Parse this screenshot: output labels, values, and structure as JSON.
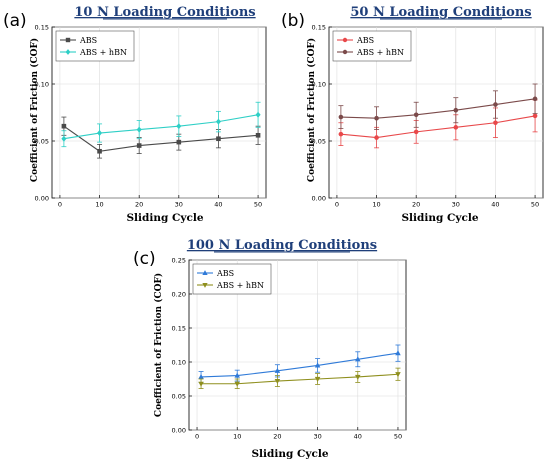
{
  "chart_data": [
    {
      "panel_label": "(a)",
      "type": "line",
      "title": "10 N Loading Conditions",
      "xlabel": "Sliding Cycle",
      "ylabel": "Coefficient of Friction (COF)",
      "x": [
        1,
        10,
        20,
        30,
        40,
        50
      ],
      "xlim": [
        -2,
        52
      ],
      "xticks": [
        "0",
        "10",
        "20",
        "30",
        "40",
        "50"
      ],
      "ylim": [
        0,
        0.15
      ],
      "yticks": [
        "0.00",
        "0.05",
        "0.10",
        "0.15"
      ],
      "grid": true,
      "legend_position": "top-left",
      "series": [
        {
          "name": "ABS",
          "color": "#4a4a4a",
          "marker": "square",
          "values": [
            0.063,
            0.041,
            0.046,
            0.049,
            0.052,
            0.055
          ],
          "errors": [
            0.008,
            0.006,
            0.007,
            0.007,
            0.008,
            0.008
          ]
        },
        {
          "name": "ABS + hBN",
          "color": "#2ecfc6",
          "marker": "diamond",
          "values": [
            0.052,
            0.057,
            0.06,
            0.063,
            0.067,
            0.073
          ],
          "errors": [
            0.007,
            0.008,
            0.008,
            0.009,
            0.009,
            0.011
          ]
        }
      ]
    },
    {
      "panel_label": "(b)",
      "type": "line",
      "title": "50 N Loading Conditions",
      "xlabel": "Sliding Cycle",
      "ylabel": "Coefficient of Friction (COF)",
      "x": [
        1,
        10,
        20,
        30,
        40,
        50
      ],
      "xlim": [
        -2,
        52
      ],
      "xticks": [
        "0",
        "10",
        "20",
        "30",
        "40",
        "50"
      ],
      "ylim": [
        0,
        0.15
      ],
      "yticks": [
        "0.00",
        "0.05",
        "0.10",
        "0.15"
      ],
      "grid": true,
      "legend_position": "top-left",
      "series": [
        {
          "name": "ABS",
          "color": "#e8484a",
          "marker": "circle",
          "values": [
            0.056,
            0.053,
            0.058,
            0.062,
            0.066,
            0.072
          ],
          "errors": [
            0.01,
            0.009,
            0.01,
            0.011,
            0.013,
            0.014
          ]
        },
        {
          "name": "ABS + hBN",
          "color": "#7b4a4a",
          "marker": "circle",
          "values": [
            0.071,
            0.07,
            0.073,
            0.077,
            0.082,
            0.087
          ],
          "errors": [
            0.01,
            0.01,
            0.011,
            0.011,
            0.012,
            0.013
          ]
        }
      ]
    },
    {
      "panel_label": "(c)",
      "type": "line",
      "title": "100 N Loading Conditions",
      "xlabel": "Sliding Cycle",
      "ylabel": "Coefficient of Friction (COF)",
      "x": [
        1,
        10,
        20,
        30,
        40,
        50
      ],
      "xlim": [
        -2,
        52
      ],
      "xticks": [
        "0",
        "10",
        "20",
        "30",
        "40",
        "50"
      ],
      "ylim": [
        0,
        0.25
      ],
      "yticks": [
        "0.00",
        "0.05",
        "0.10",
        "0.15",
        "0.20",
        "0.25"
      ],
      "grid": true,
      "legend_position": "top-left",
      "series": [
        {
          "name": "ABS",
          "color": "#2f7ad8",
          "marker": "triangle",
          "values": [
            0.078,
            0.08,
            0.087,
            0.095,
            0.104,
            0.113
          ],
          "errors": [
            0.008,
            0.008,
            0.009,
            0.01,
            0.011,
            0.012
          ]
        },
        {
          "name": "ABS + hBN",
          "color": "#8f8f1e",
          "marker": "down-triangle",
          "values": [
            0.068,
            0.068,
            0.072,
            0.075,
            0.078,
            0.082
          ],
          "errors": [
            0.007,
            0.007,
            0.008,
            0.008,
            0.008,
            0.009
          ]
        }
      ]
    }
  ]
}
